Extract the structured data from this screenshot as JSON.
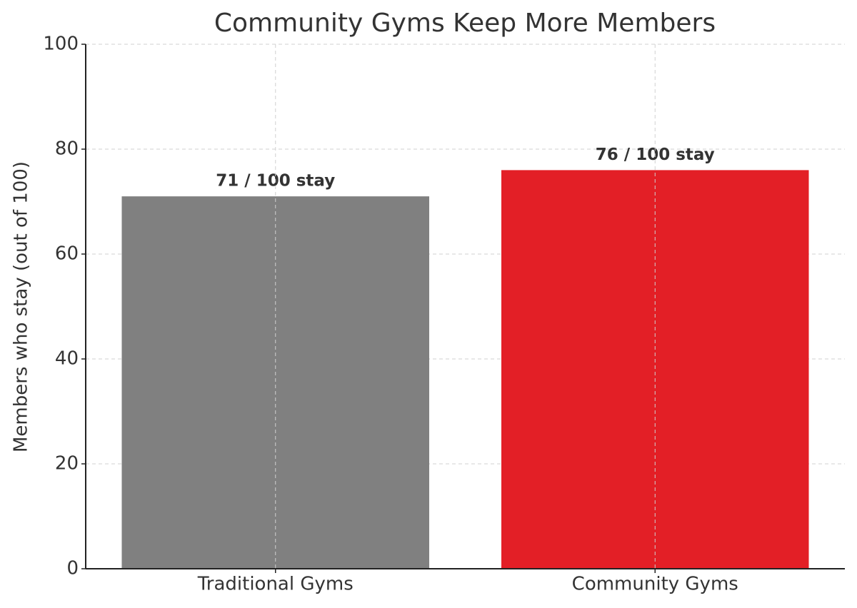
{
  "chart_data": {
    "type": "bar",
    "title": "Community Gyms Keep More Members",
    "y_label": "Members who stay (out of 100)",
    "categories": [
      "Traditional Gyms",
      "Community Gyms"
    ],
    "values": [
      71,
      76
    ],
    "value_labels": [
      "71 / 100 stay",
      "76 / 100 stay"
    ],
    "colors": [
      "#808080",
      "#e31f26"
    ],
    "ylim": [
      0,
      100
    ],
    "yticks": [
      0,
      20,
      40,
      60,
      80,
      100
    ],
    "grid": true
  }
}
